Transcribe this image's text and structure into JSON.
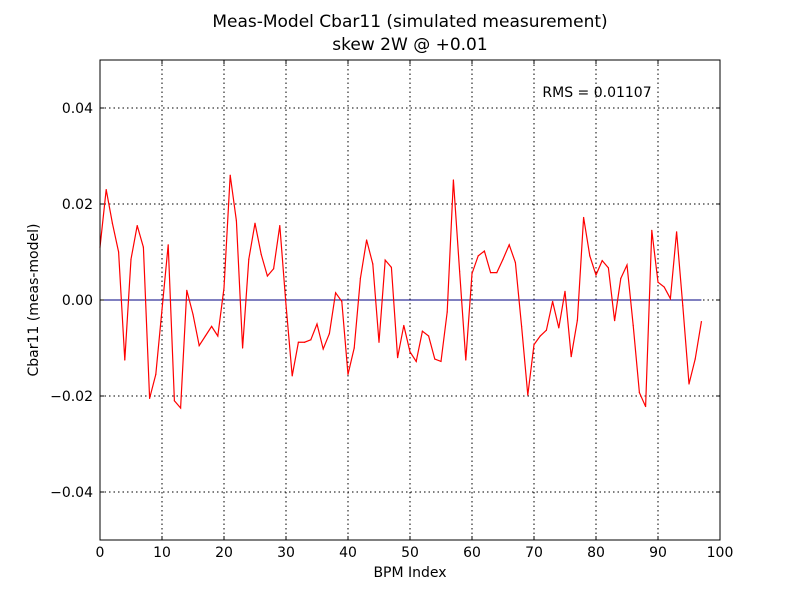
{
  "chart_data": {
    "type": "line",
    "title": "Meas-Model Cbar11 (simulated measurement)",
    "subtitle": "skew 2W @ +0.01",
    "xlabel": "BPM Index",
    "ylabel": "Cbar11 (meas-model)",
    "xlim": [
      0,
      100
    ],
    "ylim": [
      -0.05,
      0.05
    ],
    "xticks": [
      0,
      10,
      20,
      30,
      40,
      50,
      60,
      70,
      80,
      90,
      100
    ],
    "xtick_labels": [
      "0",
      "10",
      "20",
      "30",
      "40",
      "50",
      "60",
      "70",
      "80",
      "90",
      "100"
    ],
    "yticks": [
      -0.04,
      -0.02,
      0.0,
      0.02,
      0.04
    ],
    "ytick_labels": [
      "−0.04",
      "−0.02",
      "0.00",
      "0.02",
      "0.04"
    ],
    "grid": true,
    "annotation": "RMS = 0.01107",
    "zero_line": {
      "y": 0,
      "color": "#000080"
    },
    "series": [
      {
        "color": "#ff0000",
        "x": [
          0,
          1,
          2,
          3,
          4,
          5,
          6,
          7,
          8,
          9,
          10,
          11,
          12,
          13,
          14,
          15,
          16,
          17,
          18,
          19,
          20,
          21,
          22,
          23,
          24,
          25,
          26,
          27,
          28,
          29,
          30,
          31,
          32,
          33,
          34,
          35,
          36,
          37,
          38,
          39,
          40,
          41,
          42,
          43,
          44,
          45,
          46,
          47,
          48,
          49,
          50,
          51,
          52,
          53,
          54,
          55,
          56,
          57,
          58,
          59,
          60,
          61,
          62,
          63,
          64,
          65,
          66,
          67,
          68,
          69,
          70,
          71,
          72,
          73,
          74,
          75,
          76,
          77,
          78,
          79,
          80,
          81,
          82,
          83,
          84,
          85,
          86,
          87,
          88,
          89,
          90,
          91,
          92,
          93,
          94,
          95,
          96,
          97
        ],
        "values": [
          0.011,
          0.023,
          0.016,
          0.01,
          -0.0125,
          0.0085,
          0.0155,
          0.011,
          -0.0205,
          -0.0155,
          -0.002,
          0.0115,
          -0.021,
          -0.0225,
          0.002,
          -0.003,
          -0.0095,
          -0.0075,
          -0.0055,
          -0.0075,
          0.0025,
          0.026,
          0.0165,
          -0.01,
          0.0085,
          0.016,
          0.0095,
          0.005,
          0.0065,
          0.0155,
          -0.001,
          -0.0158,
          -0.0088,
          -0.0088,
          -0.0083,
          -0.005,
          -0.0102,
          -0.007,
          0.0015,
          -0.0003,
          -0.0155,
          -0.01,
          0.0045,
          0.0125,
          0.0075,
          -0.0088,
          0.0083,
          0.0068,
          -0.012,
          -0.0053,
          -0.0108,
          -0.0128,
          -0.0065,
          -0.0075,
          -0.0123,
          -0.0128,
          -0.0025,
          0.025,
          0.006,
          -0.0125,
          0.0055,
          0.0092,
          0.0102,
          0.0057,
          0.0057,
          0.0085,
          0.0115,
          0.0078,
          -0.0055,
          -0.0198,
          -0.0093,
          -0.0075,
          -0.0063,
          -0.0003,
          -0.0058,
          0.0018,
          -0.0118,
          -0.0042,
          0.0172,
          0.0092,
          0.0052,
          0.0082,
          0.0067,
          -0.0043,
          0.0045,
          0.0073,
          -0.0053,
          -0.0193,
          -0.0222,
          0.0145,
          0.0037,
          0.0027,
          0.0003,
          0.0142,
          -0.0012,
          -0.0175,
          -0.0123,
          -0.0045
        ]
      }
    ]
  }
}
